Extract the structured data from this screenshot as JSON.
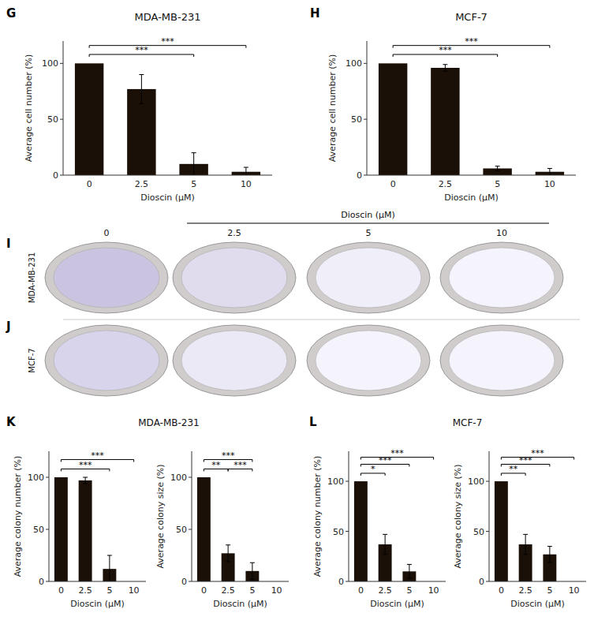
{
  "chart_data": [
    {
      "type": "bar",
      "title": "MDA-MB-231",
      "xlabel": "Dioscin (μM)",
      "ylabel": "Average cell number (%)",
      "categories": [
        "0",
        "2.5",
        "5",
        "10"
      ],
      "values": [
        100,
        77,
        10,
        3
      ],
      "errors": [
        0,
        13,
        10,
        4
      ],
      "color": "#1a1008",
      "ylim": [
        0,
        120
      ],
      "yticks": [
        0,
        50,
        100
      ],
      "annotations": [
        {
          "text": "G"
        },
        {
          "text": "***",
          "x1": 0,
          "x2": 2,
          "y": 108
        },
        {
          "text": "***",
          "x1": 0,
          "x2": 3,
          "y": 116
        }
      ]
    },
    {
      "type": "bar",
      "title": "MCF-7",
      "xlabel": "Dioscin (μM)",
      "ylabel": "Average cell number (%)",
      "categories": [
        "0",
        "2.5",
        "5",
        "10"
      ],
      "values": [
        100,
        96,
        6,
        3
      ],
      "errors": [
        0,
        3,
        2,
        3
      ],
      "color": "#1a1008",
      "ylim": [
        0,
        120
      ],
      "yticks": [
        0,
        50,
        100
      ],
      "annotations": [
        {
          "text": "H"
        },
        {
          "text": "***",
          "x1": 0,
          "x2": 2,
          "y": 108
        },
        {
          "text": "***",
          "x1": 0,
          "x2": 3,
          "y": 116
        }
      ]
    },
    {
      "type": "image_grid",
      "title": "Dioscin (μM)",
      "categories": [
        "0",
        "2.5",
        "5",
        "10"
      ],
      "series": [
        {
          "name": "MDA-MB-231",
          "colors": [
            "#cbc4e0",
            "#e0dcee",
            "#f0eef8",
            "#f5f3fc"
          ]
        },
        {
          "name": "MCF-7",
          "colors": [
            "#d8d4ec",
            "#ece9f6",
            "#f5f3fc",
            "#f5f3fc"
          ]
        }
      ],
      "annotations": [
        {
          "text": "I"
        },
        {
          "text": "J"
        }
      ]
    },
    {
      "type": "bar",
      "title": "MDA-MB-231",
      "xlabel": "Dioscin (μM)",
      "ylabel": "Average colony number (%)",
      "categories": [
        "0",
        "2.5",
        "5",
        "10"
      ],
      "values": [
        100,
        97,
        12,
        0
      ],
      "errors": [
        0,
        3,
        13,
        0
      ],
      "color": "#1a1008",
      "ylim": [
        0,
        125
      ],
      "yticks": [
        0,
        50,
        100
      ],
      "annotations": [
        {
          "text": "K"
        },
        {
          "text": "***",
          "x1": 0,
          "x2": 2,
          "y": 108
        },
        {
          "text": "***",
          "x1": 0,
          "x2": 3,
          "y": 117
        }
      ]
    },
    {
      "type": "bar",
      "xlabel": "Dioscin (μM)",
      "ylabel": "Average colony size (%)",
      "categories": [
        "0",
        "2.5",
        "5",
        "10"
      ],
      "values": [
        100,
        27,
        10,
        0
      ],
      "errors": [
        0,
        8,
        8,
        0
      ],
      "color": "#1a1008",
      "ylim": [
        0,
        125
      ],
      "yticks": [
        0,
        50,
        100
      ],
      "annotations": [
        {
          "text": "**",
          "x1": 0,
          "x2": 1,
          "y": 108
        },
        {
          "text": "***",
          "x1": 1,
          "x2": 2,
          "y": 108
        },
        {
          "text": "***",
          "x1": 0,
          "x2": 2,
          "y": 117
        }
      ]
    },
    {
      "type": "bar",
      "title": "MCF-7",
      "xlabel": "Dioscin (μM)",
      "ylabel": "Average colony number (%)",
      "categories": [
        "0",
        "2.5",
        "5",
        "10"
      ],
      "values": [
        100,
        37,
        10,
        0
      ],
      "errors": [
        0,
        10,
        7,
        0
      ],
      "color": "#1a1008",
      "ylim": [
        0,
        130
      ],
      "yticks": [
        0,
        50,
        100
      ],
      "annotations": [
        {
          "text": "L"
        },
        {
          "text": "*",
          "x1": 0,
          "x2": 1,
          "y": 108
        },
        {
          "text": "***",
          "x1": 0,
          "x2": 2,
          "y": 117
        },
        {
          "text": "***",
          "x1": 0,
          "x2": 3,
          "y": 124
        }
      ]
    },
    {
      "type": "bar",
      "xlabel": "Dioscin (μM)",
      "ylabel": "Average colony size (%)",
      "categories": [
        "0",
        "2.5",
        "5",
        "10"
      ],
      "values": [
        100,
        37,
        27,
        0
      ],
      "errors": [
        0,
        10,
        8,
        0
      ],
      "color": "#1a1008",
      "ylim": [
        0,
        130
      ],
      "yticks": [
        0,
        50,
        100
      ],
      "annotations": [
        {
          "text": "**",
          "x1": 0,
          "x2": 1,
          "y": 108
        },
        {
          "text": "***",
          "x1": 0,
          "x2": 2,
          "y": 117
        },
        {
          "text": "***",
          "x1": 0,
          "x2": 3,
          "y": 124
        }
      ]
    }
  ]
}
